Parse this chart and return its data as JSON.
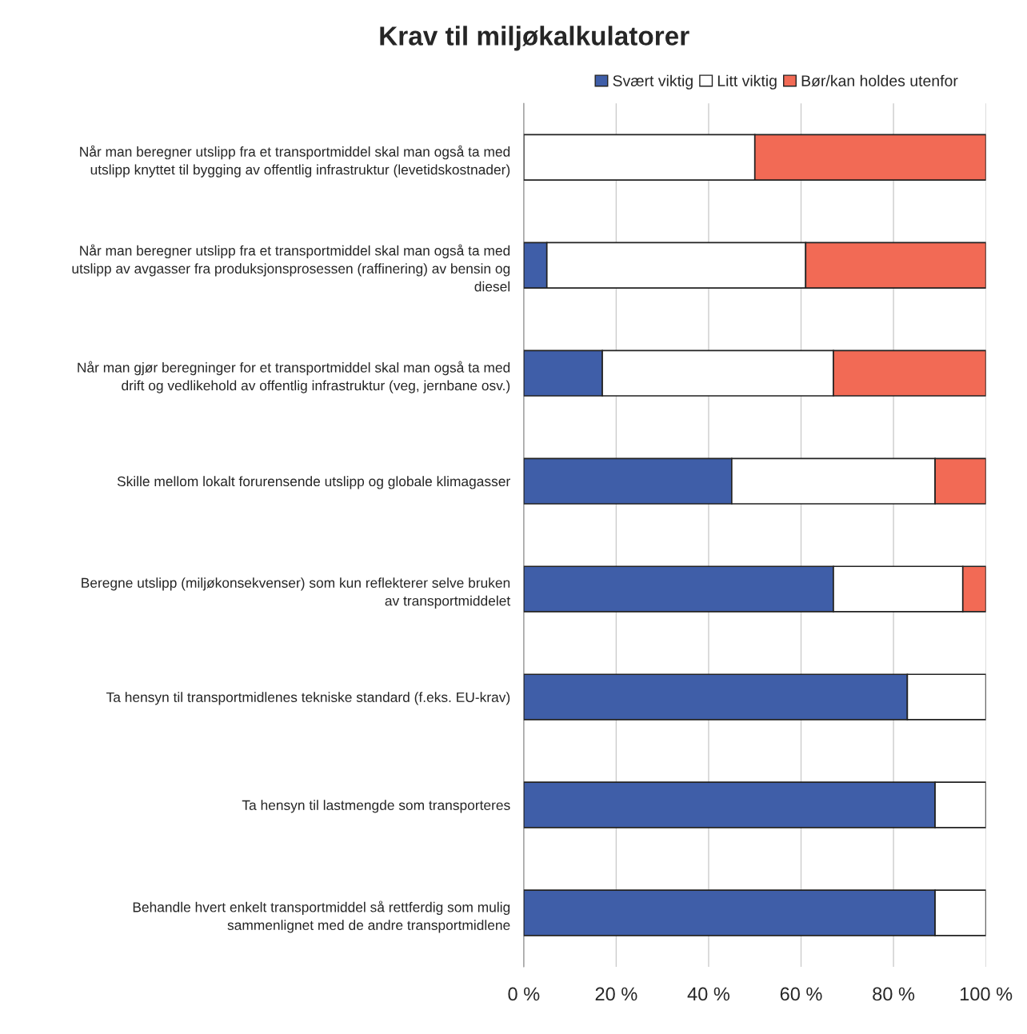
{
  "chart_data": {
    "type": "bar",
    "orientation": "horizontal",
    "stacked": true,
    "title": "Krav til miljøkalkulatorer",
    "categories": [
      "Når man beregner utslipp fra et transportmiddel skal man også ta med\nutslipp knyttet til bygging av offentlig infrastruktur (levetidskostnader)",
      "Når man beregner utslipp fra et transportmiddel skal man også ta med\nutslipp av avgasser fra produksjonsprosessen (raffinering) av bensin og\ndiesel",
      "Når man gjør beregninger for et transportmiddel skal man også ta med\ndrift og vedlikehold av offentlig infrastruktur (veg, jernbane osv.)",
      "Skille mellom lokalt forurensende utslipp og globale klimagasser",
      "Beregne utslipp (miljøkonsekvenser) som kun reflekterer selve bruken\nav transportmiddelet",
      "Ta hensyn til transportmidlenes tekniske standard (f.eks. EU-krav)",
      "Ta hensyn til lastmengde som transporteres",
      "Behandle hvert enkelt transportmiddel så rettferdig som mulig\nsammenlignet med de andre transportmidlene"
    ],
    "series": [
      {
        "name": "Svært viktig",
        "color": "#3f5ea8",
        "values": [
          0,
          5,
          17,
          45,
          67,
          83,
          89,
          89
        ]
      },
      {
        "name": "Litt viktig",
        "color": "#ffffff",
        "values": [
          50,
          56,
          50,
          44,
          28,
          17,
          11,
          11
        ]
      },
      {
        "name": "Bør/kan holdes utenfor",
        "color": "#f26a55",
        "values": [
          50,
          39,
          33,
          11,
          5,
          0,
          0,
          0
        ]
      }
    ],
    "xlim": [
      0,
      100
    ],
    "xticks": [
      {
        "value": 0,
        "label": "0 %"
      },
      {
        "value": 20,
        "label": "20 %"
      },
      {
        "value": 40,
        "label": "40 %"
      },
      {
        "value": 60,
        "label": "60 %"
      },
      {
        "value": 80,
        "label": "80 %"
      },
      {
        "value": 100,
        "label": "100 %"
      }
    ],
    "grid": "x",
    "legend": "top right"
  }
}
